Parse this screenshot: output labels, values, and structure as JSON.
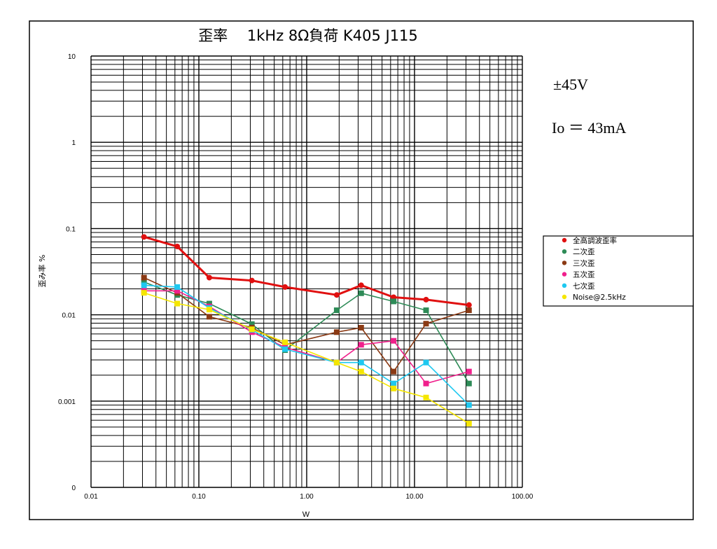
{
  "chart_data": {
    "type": "line",
    "title": "歪率　 1kHz 8Ω負荷 K405 J115",
    "xlabel": "W",
    "ylabel": "歪み率 %",
    "x_scale": "log",
    "y_scale": "log",
    "xlim": [
      0.01,
      100
    ],
    "ylim": [
      0.0001,
      10
    ],
    "x_ticks": [
      {
        "value": 0.01,
        "label": "0.01"
      },
      {
        "value": 0.1,
        "label": "0.10"
      },
      {
        "value": 1,
        "label": "1.00"
      },
      {
        "value": 10,
        "label": "10.00"
      },
      {
        "value": 100,
        "label": "100.00"
      }
    ],
    "y_ticks": [
      {
        "value": 0.0001,
        "label": "0"
      },
      {
        "value": 0.001,
        "label": "0.001"
      },
      {
        "value": 0.01,
        "label": "0.01"
      },
      {
        "value": 0.1,
        "label": "0.1"
      },
      {
        "value": 1,
        "label": "1"
      },
      {
        "value": 10,
        "label": "10"
      }
    ],
    "grid": true,
    "legend_position": "right",
    "annotations": [
      "±45V",
      "Io ＝ 43mA"
    ],
    "x": [
      0.031,
      0.063,
      0.125,
      0.31,
      0.63,
      1.9,
      3.2,
      6.4,
      12.8,
      32
    ],
    "series": [
      {
        "name": "全高調波歪率",
        "color": "#e01010",
        "values": [
          0.08,
          0.062,
          0.027,
          0.025,
          0.021,
          0.017,
          0.022,
          0.016,
          0.015,
          0.013
        ]
      },
      {
        "name": "二次歪",
        "color": "#2e8b57",
        "values": [
          0.024,
          0.017,
          0.0135,
          0.0078,
          0.0039,
          0.0113,
          0.0178,
          0.0143,
          0.0113,
          0.0016
        ]
      },
      {
        "name": "三次歪",
        "color": "#8b3a14",
        "values": [
          0.027,
          0.018,
          0.0095,
          0.0071,
          0.0045,
          0.0063,
          0.0071,
          0.0022,
          0.0079,
          0.0113
        ]
      },
      {
        "name": "五次歪",
        "color": "#f0208c",
        "values": [
          0.019,
          0.019,
          0.0125,
          0.0063,
          0.0042,
          0.0028,
          0.0045,
          0.005,
          0.0016,
          0.0022
        ]
      },
      {
        "name": "七次歪",
        "color": "#1ec8f0",
        "values": [
          0.022,
          0.021,
          0.012,
          0.0067,
          0.004,
          0.0028,
          0.0028,
          0.0016,
          0.0028,
          0.0009
        ]
      },
      {
        "name": "Noise@2.5kHz",
        "color": "#f5e600",
        "values": [
          0.018,
          0.0135,
          0.0115,
          0.0068,
          0.0048,
          0.0028,
          0.0022,
          0.0014,
          0.0011,
          0.00055
        ]
      }
    ]
  }
}
